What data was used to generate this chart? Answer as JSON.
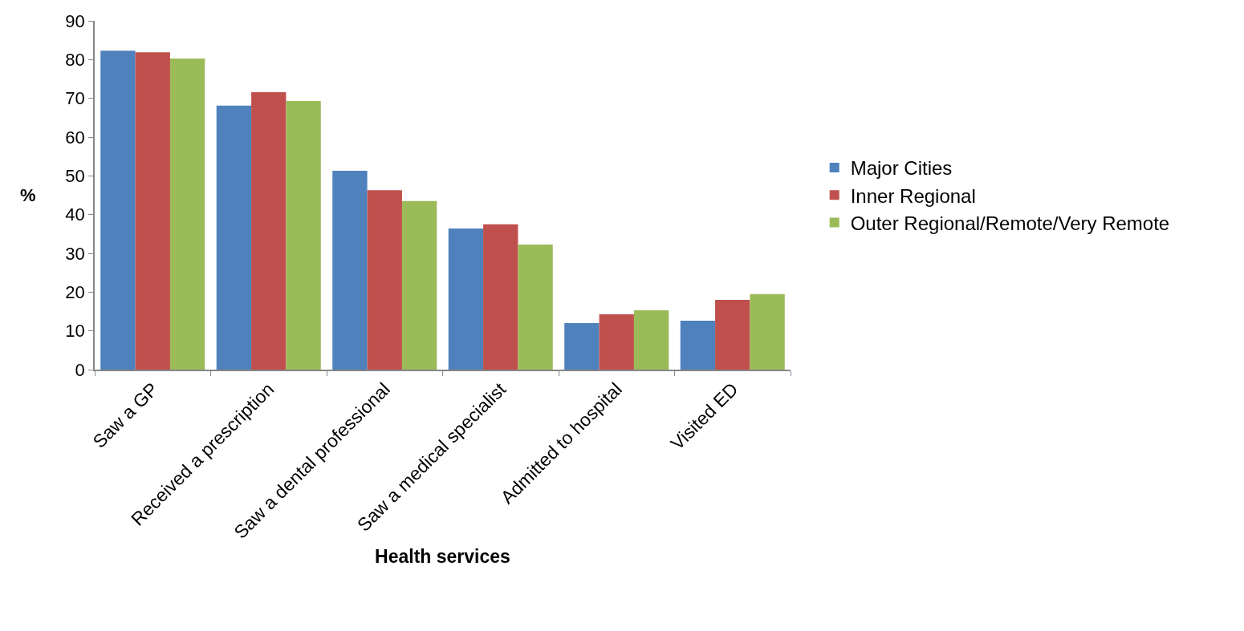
{
  "chart_data": {
    "type": "bar",
    "xlabel": "Health services",
    "ylabel": "%",
    "categories": [
      "Saw a GP",
      "Received a prescription",
      "Saw a dental professional",
      "Saw a medical specialist",
      "Admitted to hospital",
      "Visited ED"
    ],
    "series": [
      {
        "name": "Major Cities",
        "color": "#4f81bd",
        "values": [
          82.3,
          68.1,
          51.3,
          36.4,
          12.0,
          12.6
        ]
      },
      {
        "name": "Inner Regional",
        "color": "#c0504d",
        "values": [
          81.9,
          71.6,
          46.3,
          37.5,
          14.3,
          18.0
        ]
      },
      {
        "name": "Outer Regional/Remote/Very Remote",
        "color": "#9bbb59",
        "values": [
          80.3,
          69.3,
          43.5,
          32.3,
          15.3,
          19.5
        ]
      }
    ],
    "ylim": [
      0,
      90
    ],
    "yticks": [
      0,
      10,
      20,
      30,
      40,
      50,
      60,
      70,
      80,
      90
    ],
    "grid": false,
    "legend": "right"
  }
}
